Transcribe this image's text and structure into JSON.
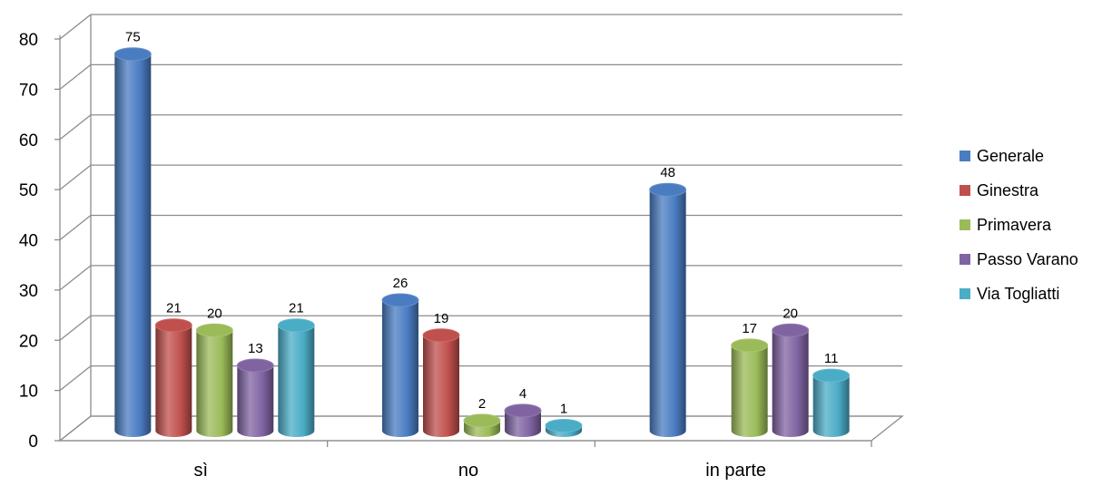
{
  "chart_data": {
    "type": "bar",
    "style": "3d-cylinder",
    "categories": [
      "sì",
      "no",
      "in parte"
    ],
    "series": [
      {
        "name": "Generale",
        "values": [
          75,
          26,
          48
        ],
        "color": "#4a7cc2"
      },
      {
        "name": "Ginestra",
        "values": [
          21,
          19,
          null
        ],
        "color": "#c0504d"
      },
      {
        "name": "Primavera",
        "values": [
          20,
          2,
          17
        ],
        "color": "#9bbb59"
      },
      {
        "name": "Passo Varano",
        "values": [
          13,
          4,
          20
        ],
        "color": "#8064a2"
      },
      {
        "name": "Via Togliatti",
        "values": [
          21,
          1,
          11
        ],
        "color": "#4bacc6"
      }
    ],
    "yticks": [
      "0",
      "10",
      "20",
      "30",
      "40",
      "50",
      "60",
      "70",
      "80"
    ],
    "ylim": [
      0,
      80
    ],
    "grid": true,
    "legend": "right"
  }
}
